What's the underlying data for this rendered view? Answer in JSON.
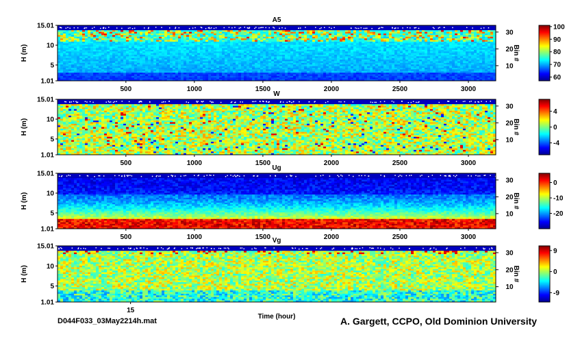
{
  "footer": {
    "file": "D044F033_03May2214h.mat",
    "credit": "A. Gargett, CCPO, Old Dominion University"
  },
  "chart_data": [
    {
      "type": "heatmap",
      "title": "A5",
      "ylabel": "H (m)",
      "y2label": "Bin #",
      "x_ticks": [
        "500",
        "1000",
        "1500",
        "2000",
        "2500",
        "3000"
      ],
      "x_tick_values": [
        500,
        1000,
        1500,
        2000,
        2500,
        3000
      ],
      "xlim": [
        1,
        3200
      ],
      "y_ticks": [
        "1.01",
        "5",
        "10",
        "15.01"
      ],
      "y_tick_values": [
        1.01,
        5,
        10,
        15.01
      ],
      "ylim": [
        1.01,
        15.01
      ],
      "bin_ticks": [
        "10",
        "20",
        "30"
      ],
      "bin_tick_values": [
        10,
        20,
        30
      ],
      "colorbar": {
        "ticks": [
          "60",
          "70",
          "80",
          "90",
          "100"
        ],
        "tick_values": [
          60,
          70,
          80,
          90,
          100
        ],
        "range": [
          57,
          101
        ]
      }
    },
    {
      "type": "heatmap",
      "title": "W",
      "ylabel": "H (m)",
      "y2label": "Bin #",
      "x_ticks": [
        "500",
        "1000",
        "1500",
        "2000",
        "2500",
        "3000"
      ],
      "x_tick_values": [
        500,
        1000,
        1500,
        2000,
        2500,
        3000
      ],
      "xlim": [
        1,
        3200
      ],
      "y_ticks": [
        "1.01",
        "5",
        "10",
        "15.01"
      ],
      "y_tick_values": [
        1.01,
        5,
        10,
        15.01
      ],
      "ylim": [
        1.01,
        15.01
      ],
      "bin_ticks": [
        "10",
        "20",
        "30"
      ],
      "bin_tick_values": [
        10,
        20,
        30
      ],
      "colorbar": {
        "ticks": [
          "-4",
          "0",
          "4"
        ],
        "tick_values": [
          -4,
          0,
          4
        ],
        "range": [
          -7,
          7
        ]
      }
    },
    {
      "type": "heatmap",
      "title": "Ug",
      "ylabel": "H (m)",
      "y2label": "Bin #",
      "x_ticks": [
        "500",
        "1000",
        "1500",
        "2000",
        "2500",
        "3000"
      ],
      "x_tick_values": [
        500,
        1000,
        1500,
        2000,
        2500,
        3000
      ],
      "xlim": [
        1,
        3200
      ],
      "y_ticks": [
        "1.01",
        "5",
        "10",
        "15.01"
      ],
      "y_tick_values": [
        1.01,
        5,
        10,
        15.01
      ],
      "ylim": [
        1.01,
        15.01
      ],
      "bin_ticks": [
        "10",
        "20",
        "30"
      ],
      "bin_tick_values": [
        10,
        20,
        30
      ],
      "colorbar": {
        "ticks": [
          "-20",
          "-10",
          "0"
        ],
        "tick_values": [
          -20,
          -10,
          0
        ],
        "range": [
          -30,
          6
        ]
      }
    },
    {
      "type": "heatmap",
      "title": "Vg",
      "ylabel": "H (m)",
      "y2label": "Bin #",
      "xlabel": "Time (hour)",
      "x_ticks": [
        "15"
      ],
      "x_tick_values": [
        15
      ],
      "xlim": [
        14.5,
        17.5
      ],
      "y_ticks": [
        "1.01",
        "5",
        "10",
        "15.01"
      ],
      "y_tick_values": [
        1.01,
        5,
        10,
        15.01
      ],
      "ylim": [
        1.01,
        15.01
      ],
      "bin_ticks": [
        "10",
        "20",
        "30"
      ],
      "bin_tick_values": [
        10,
        20,
        30
      ],
      "colorbar": {
        "ticks": [
          "-9",
          "0",
          "9"
        ],
        "tick_values": [
          -9,
          0,
          9
        ],
        "range": [
          -13,
          11
        ]
      }
    }
  ]
}
